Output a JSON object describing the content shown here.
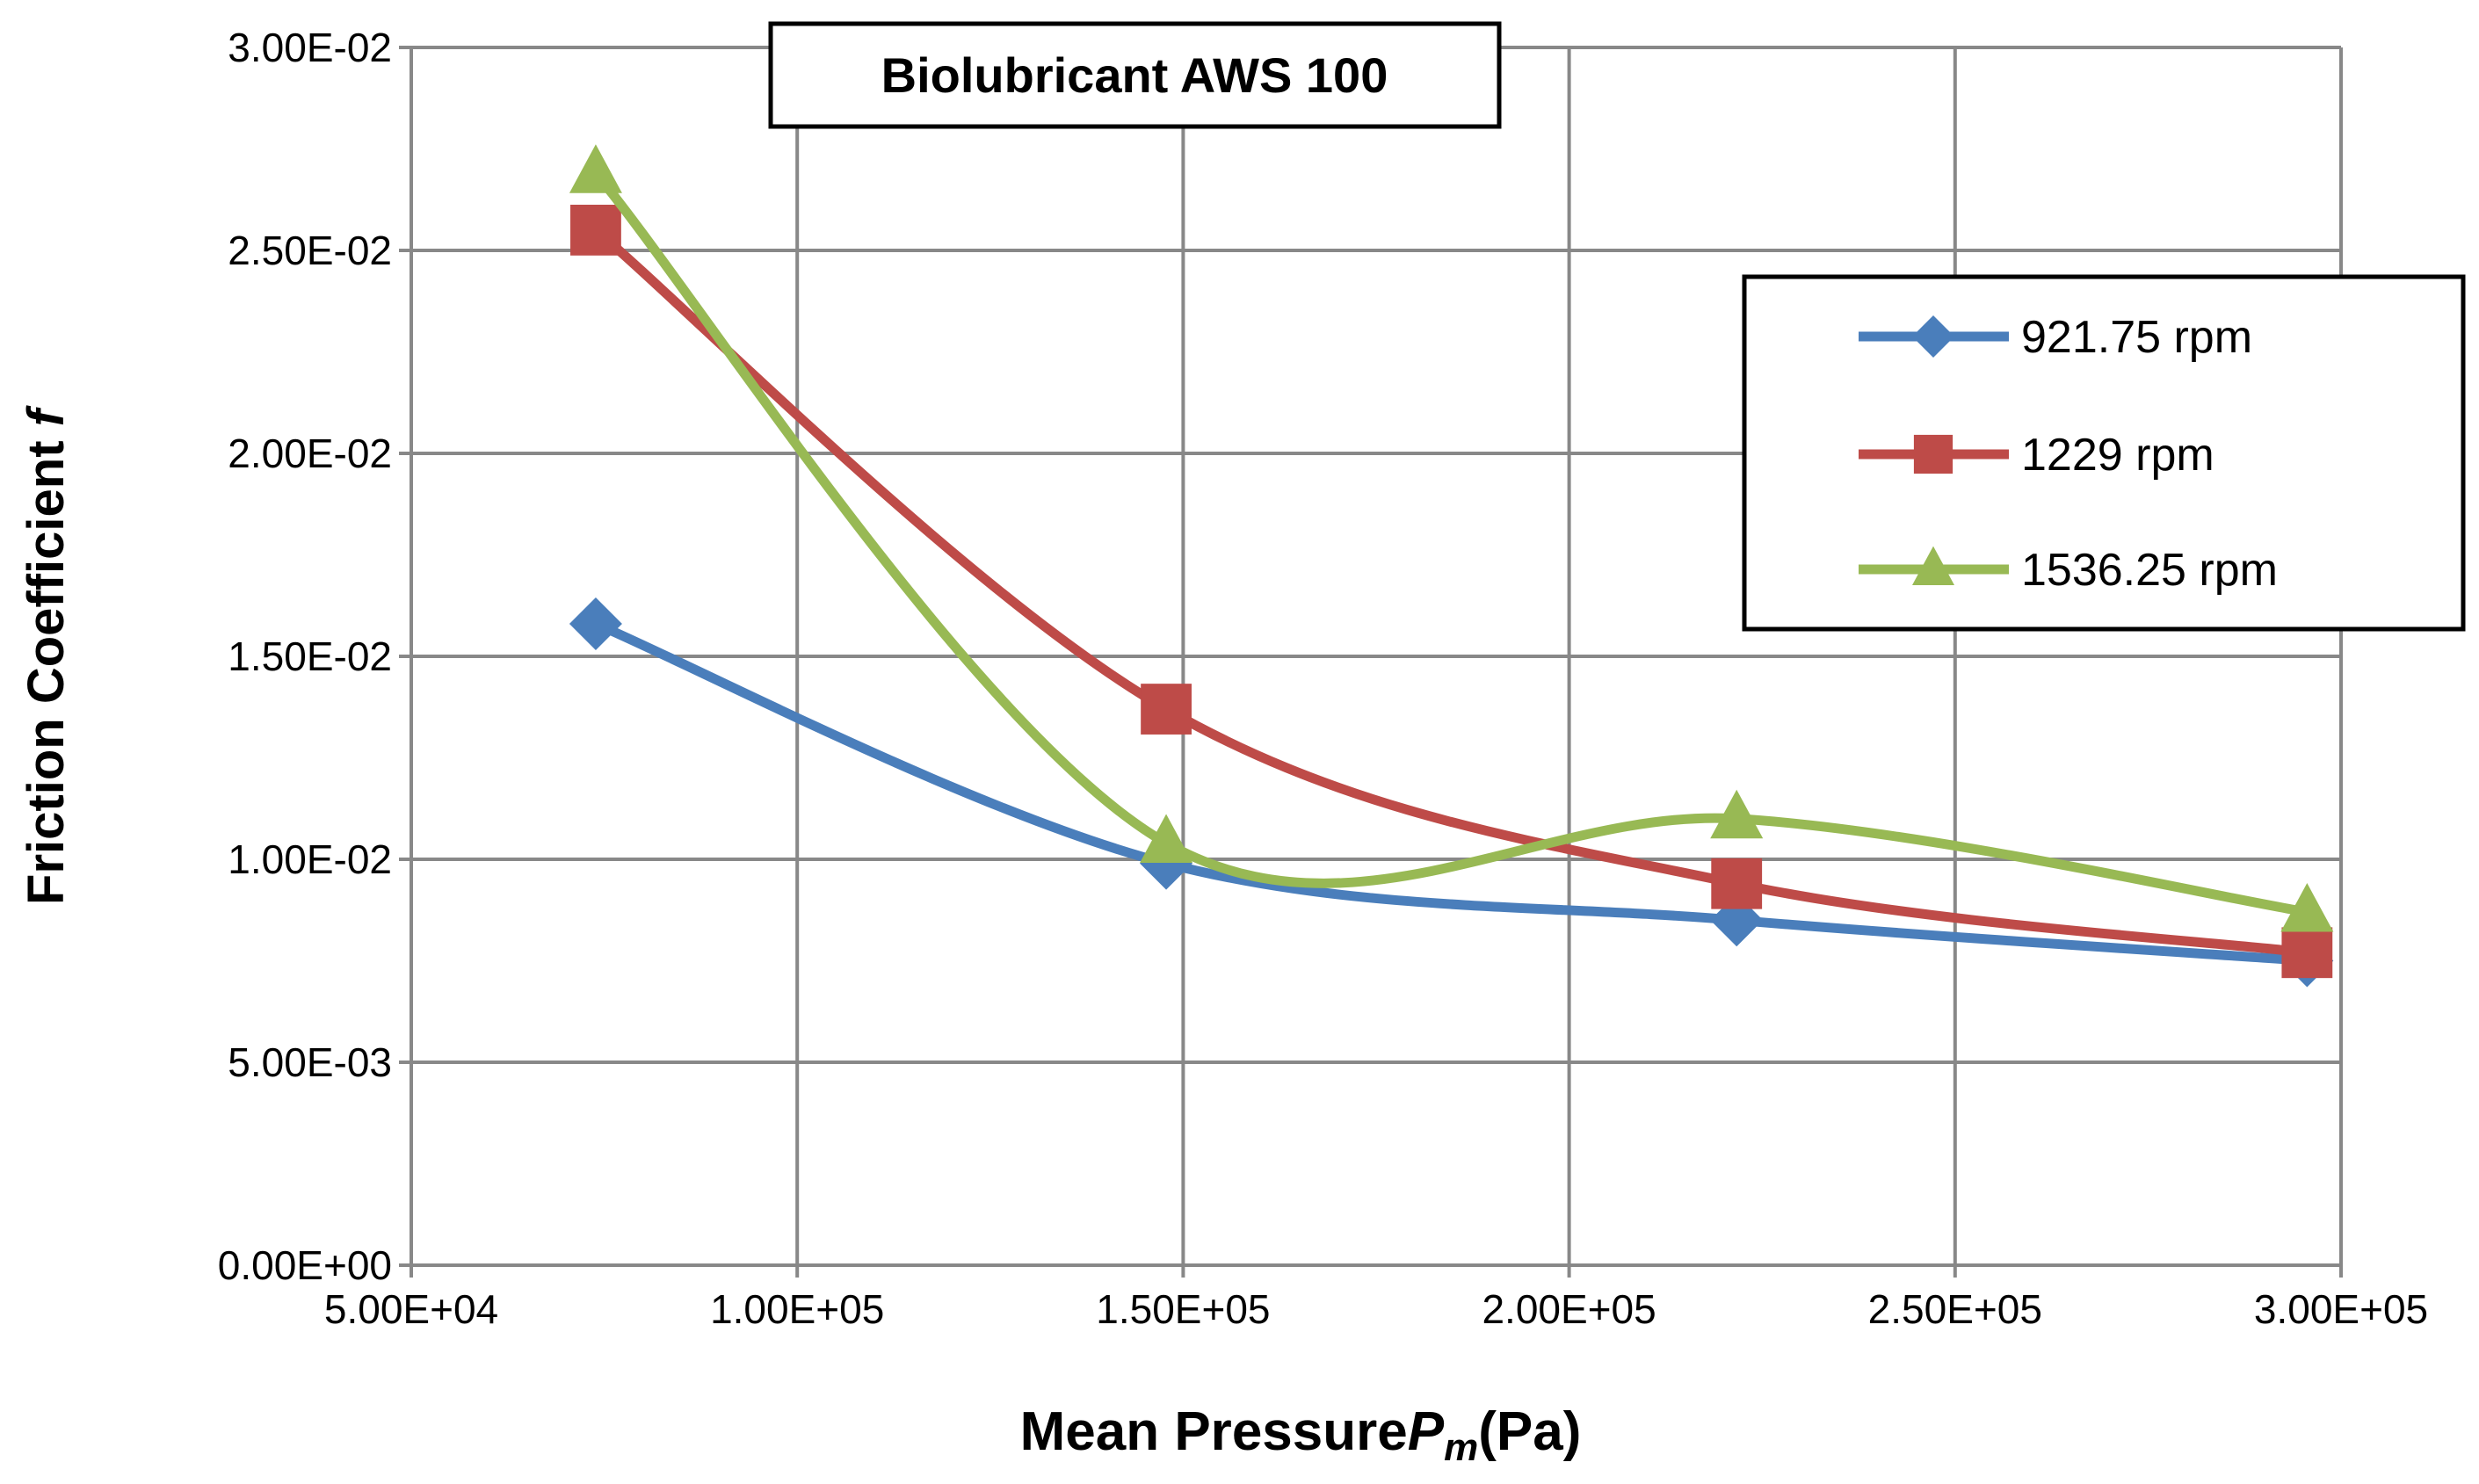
{
  "chart_data": {
    "type": "line",
    "title": "Biolubricant AWS 100",
    "xlabel_main": "Mean Pressure",
    "xlabel_symbol": "P",
    "xlabel_sub": "m",
    "xlabel_unit": "(Pa)",
    "ylabel_main": "Friction Coefficient ",
    "ylabel_symbol": "f",
    "xlim": [
      50000,
      300000
    ],
    "ylim": [
      0,
      0.03
    ],
    "xticks": [
      50000,
      100000,
      150000,
      200000,
      250000,
      300000
    ],
    "xtick_labels": [
      "5.00E+04",
      "1.00E+05",
      "1.50E+05",
      "2.00E+05",
      "2.50E+05",
      "3.00E+05"
    ],
    "yticks": [
      0,
      0.005,
      0.01,
      0.015,
      0.02,
      0.025,
      0.03
    ],
    "ytick_labels": [
      "0.00E+00",
      "5.00E-03",
      "1.00E-02",
      "1.50E-02",
      "2.00E-02",
      "2.50E-02",
      "3.00E-02"
    ],
    "grid": true,
    "legend_position": "right",
    "x": [
      73900,
      147800,
      221700,
      295600
    ],
    "series": [
      {
        "name": "921.75 rpm",
        "color": "#4a7ebb",
        "marker": "diamond",
        "values": [
          0.0158,
          0.0099,
          0.0085,
          0.0075
        ]
      },
      {
        "name": "1229 rpm",
        "color": "#be4b48",
        "marker": "square",
        "values": [
          0.0255,
          0.0137,
          0.0094,
          0.0077
        ]
      },
      {
        "name": "1536.25 rpm",
        "color": "#98b954",
        "marker": "triangle",
        "values": [
          0.0269,
          0.0104,
          0.011,
          0.0087
        ]
      }
    ]
  }
}
